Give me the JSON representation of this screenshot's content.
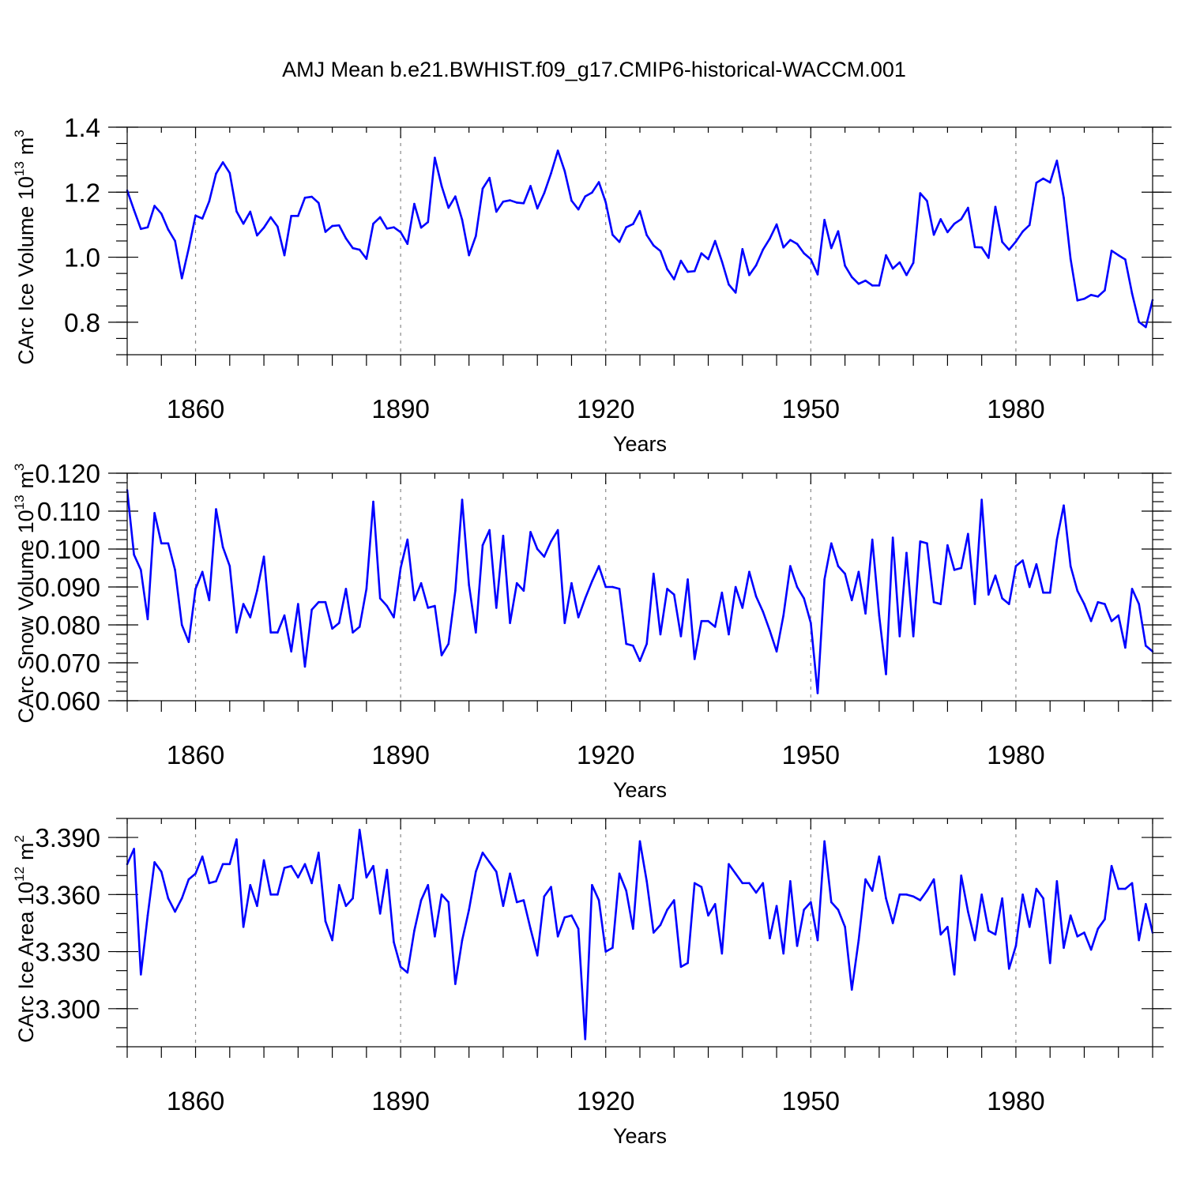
{
  "chart_data": [
    {
      "type": "line",
      "title": "AMJ Mean b.e21.BWHIST.f09_g17.CMIP6-historical-WACCM.001",
      "xlabel": "Years",
      "ylabel": "CArc Ice Volume 10",
      "ylabel_sup": "13",
      "ylabel_unit": "m",
      "ylabel_unit_sup": "3",
      "xlim": [
        1850,
        2000
      ],
      "ylim": [
        0.7,
        1.4
      ],
      "xticks": [
        1860,
        1890,
        1920,
        1950,
        1980
      ],
      "yticks": [
        "0.8",
        "1.0",
        "1.2",
        "1.4"
      ],
      "series": [
        {
          "name": "CArc Ice Volume",
          "color": "#0000ff",
          "x_start": 1850,
          "x_step": 1,
          "values": [
            1.205,
            1.145,
            1.087,
            1.092,
            1.158,
            1.134,
            1.085,
            1.05,
            0.935,
            1.027,
            1.128,
            1.119,
            1.172,
            1.257,
            1.292,
            1.259,
            1.141,
            1.103,
            1.14,
            1.067,
            1.091,
            1.123,
            1.094,
            1.006,
            1.127,
            1.127,
            1.183,
            1.186,
            1.167,
            1.078,
            1.096,
            1.098,
            1.058,
            1.028,
            1.023,
            0.995,
            1.103,
            1.123,
            1.088,
            1.092,
            1.077,
            1.041,
            1.164,
            1.091,
            1.108,
            1.306,
            1.219,
            1.152,
            1.187,
            1.115,
            1.006,
            1.065,
            1.211,
            1.244,
            1.14,
            1.171,
            1.175,
            1.168,
            1.166,
            1.219,
            1.15,
            1.197,
            1.258,
            1.328,
            1.265,
            1.174,
            1.147,
            1.187,
            1.199,
            1.231,
            1.169,
            1.069,
            1.047,
            1.092,
            1.102,
            1.142,
            1.068,
            1.036,
            1.019,
            0.963,
            0.932,
            0.989,
            0.955,
            0.957,
            1.012,
            0.994,
            1.05,
            0.987,
            0.916,
            0.891,
            1.025,
            0.945,
            0.975,
            1.023,
            1.057,
            1.101,
            1.03,
            1.053,
            1.041,
            1.012,
            0.994,
            0.947,
            1.115,
            1.028,
            1.08,
            0.974,
            0.939,
            0.918,
            0.928,
            0.913,
            0.913,
            1.006,
            0.965,
            0.984,
            0.945,
            0.983,
            1.197,
            1.173,
            1.069,
            1.117,
            1.077,
            1.103,
            1.117,
            1.152,
            1.031,
            1.03,
            0.998,
            1.155,
            1.047,
            1.023,
            1.048,
            1.079,
            1.099,
            1.229,
            1.242,
            1.23,
            1.297,
            1.183,
            0.995,
            0.867,
            0.872,
            0.884,
            0.879,
            0.898,
            1.02,
            1.006,
            0.993,
            0.888,
            0.801,
            0.785,
            0.868
          ]
        }
      ]
    },
    {
      "type": "line",
      "xlabel": "Years",
      "ylabel": "CArc Snow Volume 10",
      "ylabel_sup": "13",
      "ylabel_unit": "m",
      "ylabel_unit_sup": "3",
      "xlim": [
        1850,
        2000
      ],
      "ylim": [
        0.06,
        0.12
      ],
      "xticks": [
        1860,
        1890,
        1920,
        1950,
        1980
      ],
      "yticks": [
        "0.060",
        "0.070",
        "0.080",
        "0.090",
        "0.100",
        "0.110",
        "0.120"
      ],
      "series": [
        {
          "name": "CArc Snow Volume",
          "color": "#0000ff",
          "x_start": 1850,
          "x_step": 1,
          "values": [
            0.1155,
            0.0985,
            0.0945,
            0.0815,
            0.1095,
            0.1015,
            0.1015,
            0.0945,
            0.08,
            0.0755,
            0.0895,
            0.094,
            0.0865,
            0.1105,
            0.1005,
            0.0955,
            0.078,
            0.0855,
            0.082,
            0.089,
            0.098,
            0.078,
            0.078,
            0.0825,
            0.073,
            0.0855,
            0.069,
            0.084,
            0.086,
            0.086,
            0.079,
            0.0805,
            0.0895,
            0.078,
            0.0795,
            0.0895,
            0.1125,
            0.087,
            0.085,
            0.082,
            0.095,
            0.1025,
            0.0865,
            0.091,
            0.0845,
            0.085,
            0.072,
            0.075,
            0.089,
            0.113,
            0.0905,
            0.078,
            0.101,
            0.105,
            0.0845,
            0.1035,
            0.0805,
            0.091,
            0.089,
            0.1045,
            0.1,
            0.098,
            0.102,
            0.105,
            0.0805,
            0.091,
            0.082,
            0.087,
            0.0915,
            0.0955,
            0.09,
            0.09,
            0.0895,
            0.075,
            0.0745,
            0.0705,
            0.075,
            0.0935,
            0.0775,
            0.0895,
            0.088,
            0.077,
            0.092,
            0.071,
            0.081,
            0.081,
            0.0795,
            0.0885,
            0.0775,
            0.09,
            0.0845,
            0.094,
            0.0875,
            0.0835,
            0.0785,
            0.073,
            0.0825,
            0.0955,
            0.09,
            0.087,
            0.0805,
            0.062,
            0.092,
            0.1015,
            0.0955,
            0.0935,
            0.0865,
            0.094,
            0.083,
            0.1025,
            0.0825,
            0.067,
            0.103,
            0.077,
            0.099,
            0.077,
            0.102,
            0.1015,
            0.086,
            0.0855,
            0.101,
            0.0945,
            0.095,
            0.104,
            0.0855,
            0.113,
            0.088,
            0.093,
            0.087,
            0.0855,
            0.0955,
            0.097,
            0.09,
            0.096,
            0.0885,
            0.0885,
            0.1025,
            0.1115,
            0.0955,
            0.089,
            0.0855,
            0.081,
            0.086,
            0.0855,
            0.081,
            0.0825,
            0.074,
            0.0895,
            0.0855,
            0.0745,
            0.073
          ]
        }
      ]
    },
    {
      "type": "line",
      "xlabel": "Years",
      "ylabel": "CArc Ice Area 10",
      "ylabel_sup": "12",
      "ylabel_unit": "m",
      "ylabel_unit_sup": "2",
      "xlim": [
        1850,
        2000
      ],
      "ylim": [
        3.28,
        3.4
      ],
      "xticks": [
        1860,
        1890,
        1920,
        1950,
        1980
      ],
      "yticks": [
        "3.300",
        "3.330",
        "3.360",
        "3.390"
      ],
      "series": [
        {
          "name": "CArc Ice Area",
          "color": "#0000ff",
          "x_start": 1850,
          "x_step": 1,
          "values": [
            3.376,
            3.384,
            3.318,
            3.349,
            3.377,
            3.372,
            3.358,
            3.351,
            3.358,
            3.368,
            3.371,
            3.38,
            3.366,
            3.367,
            3.376,
            3.376,
            3.389,
            3.343,
            3.365,
            3.354,
            3.378,
            3.36,
            3.36,
            3.374,
            3.375,
            3.369,
            3.376,
            3.366,
            3.382,
            3.346,
            3.336,
            3.365,
            3.354,
            3.358,
            3.394,
            3.369,
            3.375,
            3.35,
            3.373,
            3.335,
            3.322,
            3.319,
            3.341,
            3.357,
            3.365,
            3.338,
            3.36,
            3.356,
            3.313,
            3.336,
            3.352,
            3.372,
            3.382,
            3.377,
            3.372,
            3.354,
            3.371,
            3.356,
            3.357,
            3.342,
            3.328,
            3.359,
            3.364,
            3.338,
            3.348,
            3.349,
            3.342,
            3.284,
            3.365,
            3.357,
            3.33,
            3.332,
            3.371,
            3.362,
            3.342,
            3.388,
            3.367,
            3.34,
            3.344,
            3.352,
            3.357,
            3.322,
            3.324,
            3.366,
            3.364,
            3.349,
            3.355,
            3.329,
            3.376,
            3.371,
            3.366,
            3.366,
            3.361,
            3.366,
            3.337,
            3.354,
            3.329,
            3.367,
            3.333,
            3.352,
            3.356,
            3.336,
            3.388,
            3.356,
            3.352,
            3.343,
            3.31,
            3.336,
            3.368,
            3.362,
            3.38,
            3.358,
            3.345,
            3.36,
            3.36,
            3.359,
            3.357,
            3.362,
            3.368,
            3.339,
            3.343,
            3.318,
            3.37,
            3.351,
            3.336,
            3.36,
            3.341,
            3.339,
            3.358,
            3.321,
            3.333,
            3.36,
            3.343,
            3.363,
            3.358,
            3.324,
            3.367,
            3.332,
            3.349,
            3.338,
            3.34,
            3.331,
            3.342,
            3.347,
            3.375,
            3.363,
            3.363,
            3.366,
            3.336,
            3.355,
            3.34
          ]
        }
      ]
    }
  ]
}
